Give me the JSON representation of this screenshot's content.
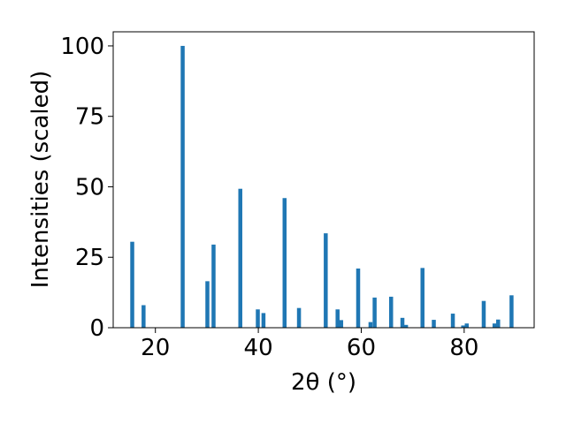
{
  "chart_data": {
    "type": "bar",
    "title": "",
    "xlabel": "2θ (°)",
    "ylabel": "Intensities (scaled)",
    "xlim": [
      11.8,
      93.6
    ],
    "ylim": [
      0,
      105
    ],
    "xticks": [
      20,
      40,
      60,
      80
    ],
    "yticks": [
      0,
      25,
      50,
      75,
      100
    ],
    "grid": false,
    "bar_color": "#1f77b4",
    "bars": [
      {
        "x": 15.5,
        "y": 30.5
      },
      {
        "x": 17.7,
        "y": 8.0
      },
      {
        "x": 25.3,
        "y": 100.0
      },
      {
        "x": 30.1,
        "y": 16.5
      },
      {
        "x": 31.3,
        "y": 29.5
      },
      {
        "x": 36.5,
        "y": 49.3
      },
      {
        "x": 39.9,
        "y": 6.5
      },
      {
        "x": 41.0,
        "y": 5.2
      },
      {
        "x": 45.1,
        "y": 46.0
      },
      {
        "x": 47.9,
        "y": 7.0
      },
      {
        "x": 53.1,
        "y": 33.5
      },
      {
        "x": 55.4,
        "y": 6.5
      },
      {
        "x": 56.1,
        "y": 2.7
      },
      {
        "x": 59.4,
        "y": 21.0
      },
      {
        "x": 61.8,
        "y": 2.0
      },
      {
        "x": 62.6,
        "y": 10.7
      },
      {
        "x": 65.8,
        "y": 11.0
      },
      {
        "x": 68.0,
        "y": 3.5
      },
      {
        "x": 68.7,
        "y": 1.0
      },
      {
        "x": 71.9,
        "y": 21.2
      },
      {
        "x": 74.1,
        "y": 2.8
      },
      {
        "x": 77.8,
        "y": 5.0
      },
      {
        "x": 79.8,
        "y": 0.8
      },
      {
        "x": 80.5,
        "y": 1.5
      },
      {
        "x": 83.8,
        "y": 9.5
      },
      {
        "x": 85.9,
        "y": 1.5
      },
      {
        "x": 86.6,
        "y": 2.9
      },
      {
        "x": 89.2,
        "y": 11.5
      }
    ]
  }
}
